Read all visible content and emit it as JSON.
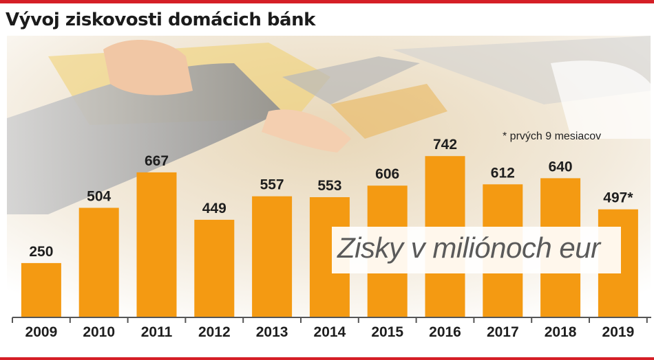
{
  "header": {
    "title": "Vývoj ziskovosti domácich bánk"
  },
  "chart_data": {
    "type": "bar",
    "title": "Vývoj ziskovosti domácich bánk",
    "unit_label": "Zisky v miliónoch eur",
    "footnote": "* prvých 9 mesiacov",
    "categories": [
      "2009",
      "2010",
      "2011",
      "2012",
      "2013",
      "2014",
      "2015",
      "2016",
      "2017",
      "2018",
      "2019"
    ],
    "values": [
      250,
      504,
      667,
      449,
      557,
      553,
      606,
      742,
      612,
      640,
      497
    ],
    "value_labels": [
      "250",
      "504",
      "667",
      "449",
      "557",
      "553",
      "606",
      "742",
      "612",
      "640",
      "497*"
    ],
    "bar_color": "#f49a12",
    "ylim": [
      0,
      800
    ],
    "grid": false,
    "legend": "none"
  }
}
